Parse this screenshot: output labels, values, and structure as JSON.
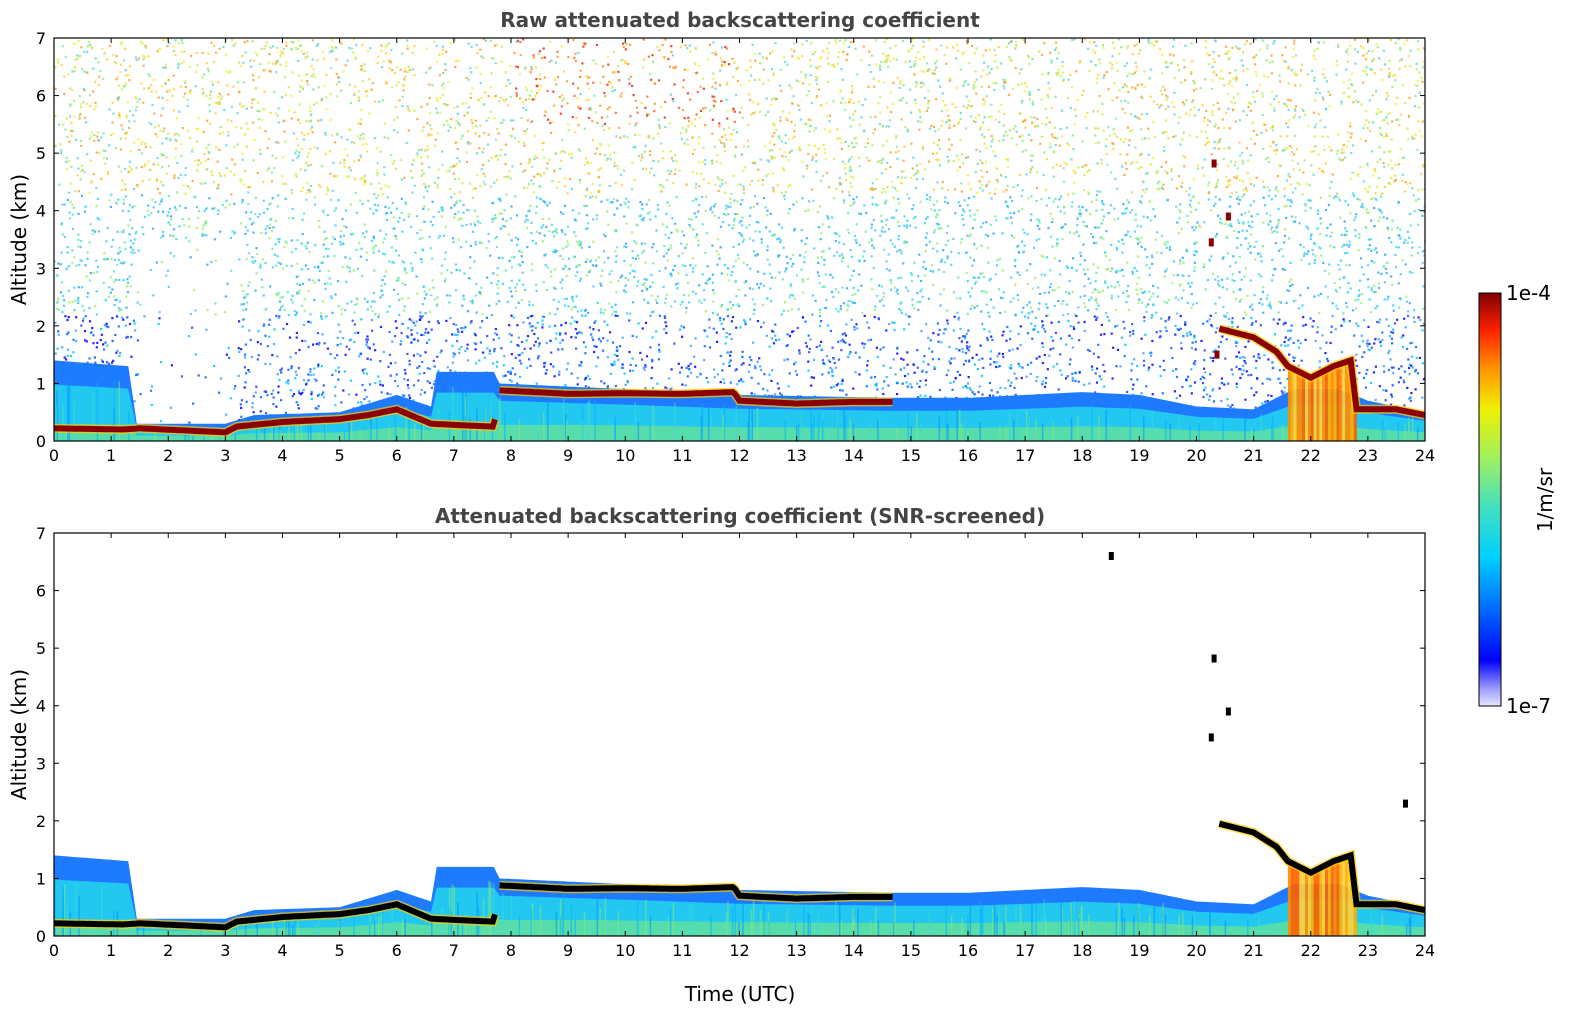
{
  "chart_data": [
    {
      "type": "heatmap",
      "title": "Raw attenuated backscattering coefficient",
      "xlabel": "",
      "ylabel": "Altitude (km)",
      "xlim": [
        0,
        24
      ],
      "ylim": [
        0,
        7
      ],
      "xticks": [
        "0",
        "1",
        "2",
        "3",
        "4",
        "5",
        "6",
        "7",
        "8",
        "9",
        "10",
        "11",
        "12",
        "13",
        "14",
        "15",
        "16",
        "17",
        "18",
        "19",
        "20",
        "21",
        "22",
        "23",
        "24"
      ],
      "yticks": [
        "0",
        "1",
        "2",
        "3",
        "4",
        "5",
        "6",
        "7"
      ],
      "noise_background": true,
      "boundary_layer_top_km": [
        [
          0,
          1.4
        ],
        [
          1.3,
          1.3
        ],
        [
          1.45,
          0.3
        ],
        [
          3,
          0.3
        ],
        [
          3.5,
          0.45
        ],
        [
          5,
          0.5
        ],
        [
          6,
          0.8
        ],
        [
          6.6,
          0.6
        ],
        [
          6.7,
          1.2
        ],
        [
          7.7,
          1.2
        ],
        [
          7.8,
          1.0
        ],
        [
          10,
          0.9
        ],
        [
          12,
          0.8
        ],
        [
          14.7,
          0.75
        ],
        [
          16,
          0.75
        ],
        [
          18,
          0.85
        ],
        [
          19,
          0.8
        ],
        [
          20,
          0.6
        ],
        [
          21,
          0.55
        ],
        [
          21.7,
          0.9
        ],
        [
          22.5,
          0.9
        ],
        [
          23,
          0.7
        ],
        [
          24,
          0.5
        ]
      ],
      "aerosol_layer_km": [
        [
          0,
          0.22
        ],
        [
          1.2,
          0.2
        ],
        [
          1.5,
          0.22
        ],
        [
          3,
          0.15
        ],
        [
          3.2,
          0.25
        ],
        [
          4,
          0.33
        ],
        [
          5,
          0.38
        ],
        [
          5.5,
          0.45
        ],
        [
          6,
          0.55
        ],
        [
          6.6,
          0.3
        ],
        [
          7,
          0.28
        ],
        [
          7.7,
          0.25
        ],
        [
          7.8,
          0.88
        ],
        [
          9,
          0.82
        ],
        [
          10,
          0.83
        ],
        [
          11,
          0.82
        ],
        [
          11.9,
          0.85
        ],
        [
          12,
          0.7
        ],
        [
          13,
          0.65
        ],
        [
          14,
          0.68
        ],
        [
          14.7,
          0.68
        ]
      ],
      "elevated_layer_km": [
        [
          20.4,
          1.95
        ],
        [
          21,
          1.8
        ],
        [
          21.4,
          1.55
        ],
        [
          21.6,
          1.3
        ],
        [
          22,
          1.1
        ],
        [
          22.4,
          1.3
        ],
        [
          22.7,
          1.4
        ],
        [
          22.8,
          0.55
        ],
        [
          23.5,
          0.55
        ],
        [
          24,
          0.45
        ]
      ],
      "cloud_patches": [
        {
          "t": 20.3,
          "alt": 4.82
        },
        {
          "t": 20.55,
          "alt": 3.9
        },
        {
          "t": 20.25,
          "alt": 3.45
        },
        {
          "t": 20.35,
          "alt": 1.5
        }
      ]
    },
    {
      "type": "heatmap",
      "title": "Attenuated backscattering coefficient (SNR-screened)",
      "xlabel": "Time (UTC)",
      "ylabel": "Altitude (km)",
      "xlim": [
        0,
        24
      ],
      "ylim": [
        0,
        7
      ],
      "xticks": [
        "0",
        "1",
        "2",
        "3",
        "4",
        "5",
        "6",
        "7",
        "8",
        "9",
        "10",
        "11",
        "12",
        "13",
        "14",
        "15",
        "16",
        "17",
        "18",
        "19",
        "20",
        "21",
        "22",
        "23",
        "24"
      ],
      "yticks": [
        "0",
        "1",
        "2",
        "3",
        "4",
        "5",
        "6",
        "7"
      ],
      "noise_background": false,
      "boundary_layer_top_km": [
        [
          0,
          1.4
        ],
        [
          1.3,
          1.3
        ],
        [
          1.45,
          0.3
        ],
        [
          3,
          0.3
        ],
        [
          3.5,
          0.45
        ],
        [
          5,
          0.5
        ],
        [
          6,
          0.8
        ],
        [
          6.6,
          0.6
        ],
        [
          6.7,
          1.2
        ],
        [
          7.7,
          1.2
        ],
        [
          7.8,
          1.0
        ],
        [
          10,
          0.9
        ],
        [
          12,
          0.8
        ],
        [
          14.7,
          0.75
        ],
        [
          16,
          0.75
        ],
        [
          18,
          0.85
        ],
        [
          19,
          0.8
        ],
        [
          20,
          0.6
        ],
        [
          21,
          0.55
        ],
        [
          21.7,
          0.9
        ],
        [
          22.5,
          0.9
        ],
        [
          23,
          0.7
        ],
        [
          24,
          0.5
        ]
      ],
      "aerosol_layer_km": [
        [
          0,
          0.22
        ],
        [
          1.2,
          0.2
        ],
        [
          1.5,
          0.22
        ],
        [
          3,
          0.15
        ],
        [
          3.2,
          0.25
        ],
        [
          4,
          0.33
        ],
        [
          5,
          0.38
        ],
        [
          5.5,
          0.45
        ],
        [
          6,
          0.55
        ],
        [
          6.6,
          0.3
        ],
        [
          7,
          0.28
        ],
        [
          7.7,
          0.25
        ],
        [
          7.8,
          0.88
        ],
        [
          9,
          0.82
        ],
        [
          10,
          0.83
        ],
        [
          11,
          0.82
        ],
        [
          11.9,
          0.85
        ],
        [
          12,
          0.7
        ],
        [
          13,
          0.65
        ],
        [
          14,
          0.68
        ],
        [
          14.7,
          0.68
        ]
      ],
      "elevated_layer_km": [
        [
          20.4,
          1.95
        ],
        [
          21,
          1.8
        ],
        [
          21.4,
          1.55
        ],
        [
          21.6,
          1.3
        ],
        [
          22,
          1.1
        ],
        [
          22.4,
          1.3
        ],
        [
          22.7,
          1.4
        ],
        [
          22.8,
          0.55
        ],
        [
          23.5,
          0.55
        ],
        [
          24,
          0.45
        ]
      ],
      "cloud_patches": [
        {
          "t": 20.3,
          "alt": 4.82
        },
        {
          "t": 20.55,
          "alt": 3.9
        },
        {
          "t": 20.25,
          "alt": 3.45
        },
        {
          "t": 18.5,
          "alt": 6.6
        },
        {
          "t": 23.65,
          "alt": 2.3
        }
      ]
    }
  ],
  "colorbar": {
    "label": "1/m/sr",
    "max_label": "1e-4",
    "min_label": "1e-7",
    "scale": "log",
    "colormap": "jet"
  },
  "colors": {
    "strong_layer_raw": "#8b0000",
    "strong_layer_screened": "#000000",
    "title": "#444444"
  }
}
